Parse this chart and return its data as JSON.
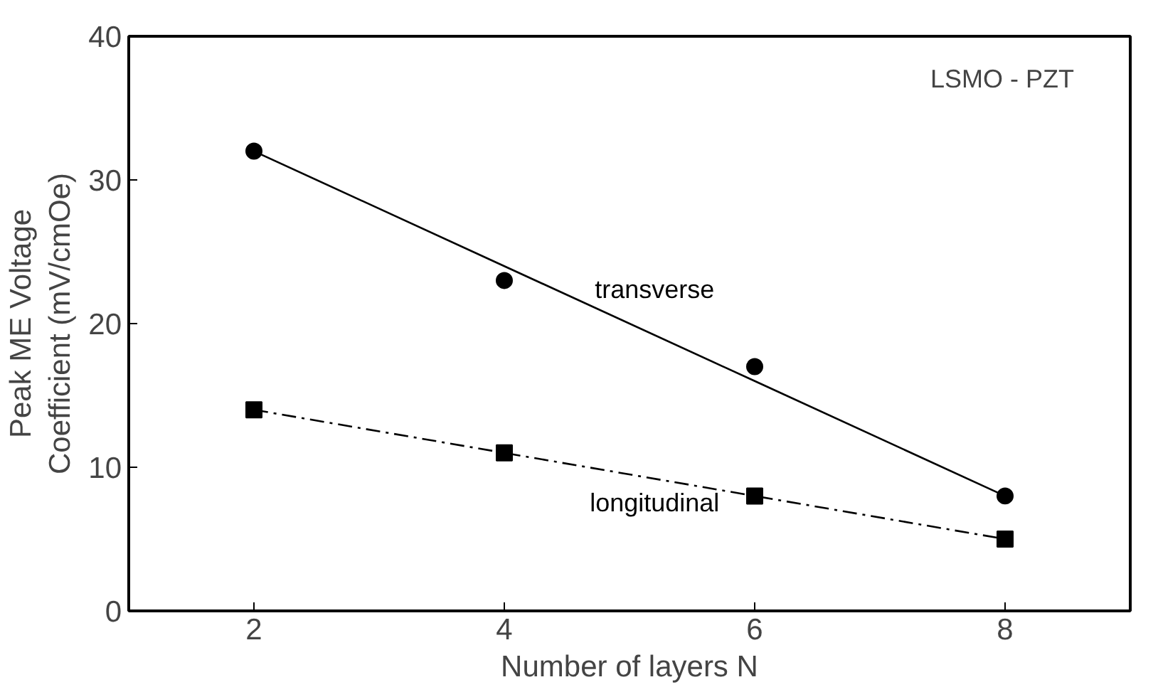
{
  "chart_data": {
    "type": "scatter",
    "xlabel": "Number of layers N",
    "ylabel": "Peak ME Voltage\nCoefficient (mV/cmOe)",
    "annotations": [
      "LSMO - PZT"
    ],
    "x": [
      2,
      4,
      6,
      8
    ],
    "series": [
      {
        "name": "transverse",
        "marker": "circle",
        "color": "#000000",
        "values": [
          32,
          23,
          17,
          8
        ]
      },
      {
        "type": "line",
        "line_style": "solid",
        "color": "#000000",
        "values": [
          32,
          24,
          16,
          8
        ]
      },
      {
        "name": "longitudinal",
        "marker": "square",
        "color": "#000000",
        "values": [
          14,
          11,
          8,
          5
        ]
      },
      {
        "type": "line",
        "line_style": "dashed",
        "color": "#000000",
        "values": [
          14,
          11,
          8,
          5
        ]
      }
    ],
    "xlim": [
      1,
      9
    ],
    "ylim": [
      0,
      40
    ],
    "xticks": [
      2,
      4,
      6,
      8
    ],
    "yticks": [
      0,
      10,
      20,
      30,
      40
    ],
    "grid": false,
    "legend": false
  }
}
